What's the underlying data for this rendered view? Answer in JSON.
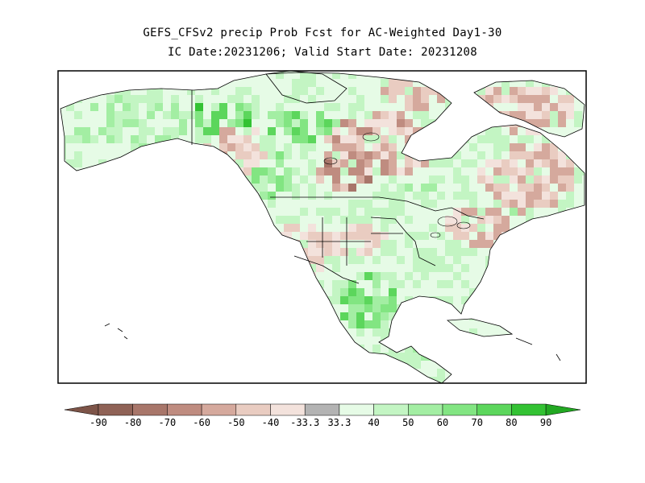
{
  "title": {
    "line1": "GEFS_CFSv2 precip Prob Fcst for AC-Weighted Day1-30",
    "line2": "IC Date:20231206; Valid Start Date: 20231208"
  },
  "colorbar": {
    "labels": [
      "-90",
      "-80",
      "-70",
      "-60",
      "-50",
      "-40",
      "-33.3",
      "33.3",
      "40",
      "50",
      "60",
      "70",
      "80",
      "90"
    ],
    "colors": [
      "#7d5448",
      "#8f6256",
      "#a8766a",
      "#bf8c80",
      "#d5a99d",
      "#e9ccc1",
      "#f3e2dc",
      "#b3b3b3",
      "#e6fbe6",
      "#c3f5c3",
      "#a3eea3",
      "#82e582",
      "#5cd65c",
      "#33c233",
      "#22a822"
    ]
  },
  "colors": {
    "ocean": "#ffffff",
    "land_default": "#e6fbe6",
    "neutral": "#b3b3b3",
    "coast": "#000000",
    "frame": "#000000"
  }
}
